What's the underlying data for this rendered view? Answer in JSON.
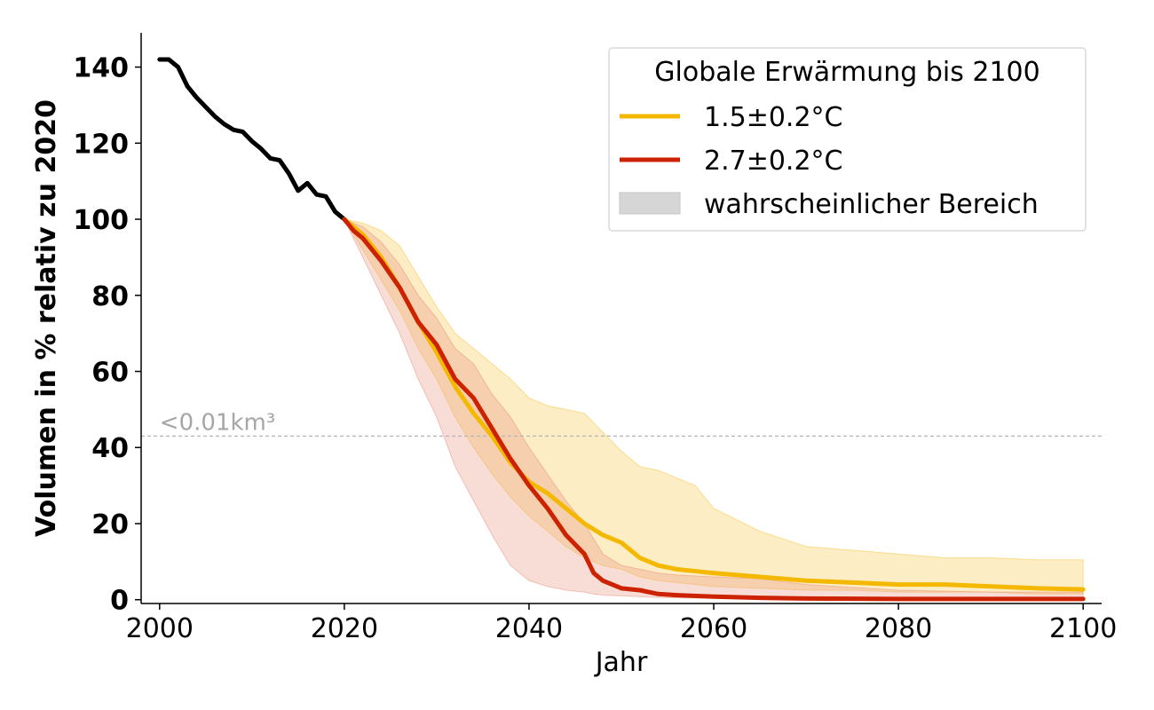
{
  "chart_data": {
    "type": "line",
    "title": "",
    "xlabel": "Jahr",
    "ylabel": "Volumen in % relativ zu 2020",
    "xlim": [
      1998,
      2102
    ],
    "ylim": [
      -1,
      149
    ],
    "x_ticks": [
      "2000",
      "2020",
      "2040",
      "2060",
      "2080",
      "2100"
    ],
    "y_ticks": [
      "0",
      "20",
      "40",
      "60",
      "80",
      "100",
      "120",
      "140"
    ],
    "grid": false,
    "legend": {
      "title": "Globale Erwärmung bis 2100",
      "placement": "top-right",
      "entries": [
        {
          "label": "1.5±0.2°C",
          "kind": "line",
          "color": "#f5b800"
        },
        {
          "label": "2.7±0.2°C",
          "kind": "line",
          "color": "#cc2200"
        },
        {
          "label": "wahrscheinlicher Bereich",
          "kind": "band",
          "color": "#d6d6d6"
        }
      ]
    },
    "threshold": {
      "y": 43,
      "label": "<0.01km³",
      "color": "#b5b5b5"
    },
    "historical": {
      "color": "#000000",
      "x": [
        2000,
        2001,
        2002,
        2003,
        2004,
        2005,
        2006,
        2007,
        2008,
        2009,
        2010,
        2011,
        2012,
        2013,
        2014,
        2015,
        2016,
        2017,
        2018,
        2019,
        2020
      ],
      "values": [
        142,
        142,
        140,
        135,
        132,
        129.5,
        127,
        125,
        123.5,
        123,
        120.5,
        118.5,
        116,
        115.5,
        112,
        107.5,
        109.5,
        106.5,
        106,
        102,
        100
      ]
    },
    "series": [
      {
        "name": "1.5±0.2°C",
        "color": "#f5b800",
        "band_color": "#f8c43c",
        "x": [
          2020,
          2022,
          2024,
          2026,
          2028,
          2030,
          2032,
          2034,
          2036,
          2038,
          2040,
          2042,
          2044,
          2046,
          2048,
          2050,
          2052,
          2054,
          2056,
          2058,
          2060,
          2065,
          2070,
          2075,
          2080,
          2085,
          2090,
          2095,
          2100
        ],
        "values": [
          100,
          96,
          90,
          82,
          73,
          65,
          56,
          49,
          43,
          36,
          31,
          28,
          24,
          20,
          17,
          15,
          11,
          9,
          8,
          7.5,
          7,
          6,
          5,
          4.5,
          4,
          4,
          3.5,
          3,
          2.7
        ],
        "lower": [
          100,
          92,
          84,
          76,
          66,
          58,
          48,
          40,
          33,
          27,
          22,
          18,
          14,
          11,
          9,
          8,
          6,
          5,
          4.5,
          4,
          3.5,
          3,
          2.5,
          2.5,
          2,
          2,
          2,
          1.5,
          1.5
        ],
        "upper": [
          100,
          99,
          97,
          93,
          85,
          77,
          70,
          66,
          62,
          58,
          53,
          51,
          50,
          49,
          44,
          39,
          35,
          34,
          32,
          30,
          24,
          18,
          14,
          13,
          12,
          11,
          11,
          10.5,
          10.5
        ]
      },
      {
        "name": "2.7±0.2°C",
        "color": "#cc2200",
        "band_color": "#e8907c",
        "x": [
          2020,
          2021,
          2022,
          2024,
          2026,
          2028,
          2030,
          2032,
          2034,
          2036,
          2038,
          2040,
          2042,
          2044,
          2046,
          2047,
          2048,
          2050,
          2052,
          2054,
          2056,
          2060,
          2065,
          2070,
          2080,
          2090,
          2100
        ],
        "values": [
          100,
          97,
          95,
          89,
          82,
          73,
          67,
          58,
          53,
          45,
          37,
          30,
          24,
          17,
          12,
          7,
          5,
          3,
          2.5,
          1.5,
          1.2,
          0.8,
          0.5,
          0.3,
          0.2,
          0.2,
          0.2
        ],
        "lower": [
          100,
          95,
          90,
          80,
          70,
          58,
          48,
          35,
          26,
          17,
          9,
          5,
          3.5,
          2.5,
          2,
          1.5,
          1.2,
          1,
          0.8,
          0.6,
          0.5,
          0.4,
          0.3,
          0.2,
          0.2,
          0.2,
          0.2
        ],
        "upper": [
          100,
          99,
          98,
          94,
          88,
          80,
          74,
          66,
          62,
          54,
          48,
          40,
          33,
          26,
          20,
          16,
          12,
          9,
          8,
          7,
          6.5,
          6,
          5.5,
          4,
          2.5,
          2,
          2
        ]
      }
    ]
  }
}
